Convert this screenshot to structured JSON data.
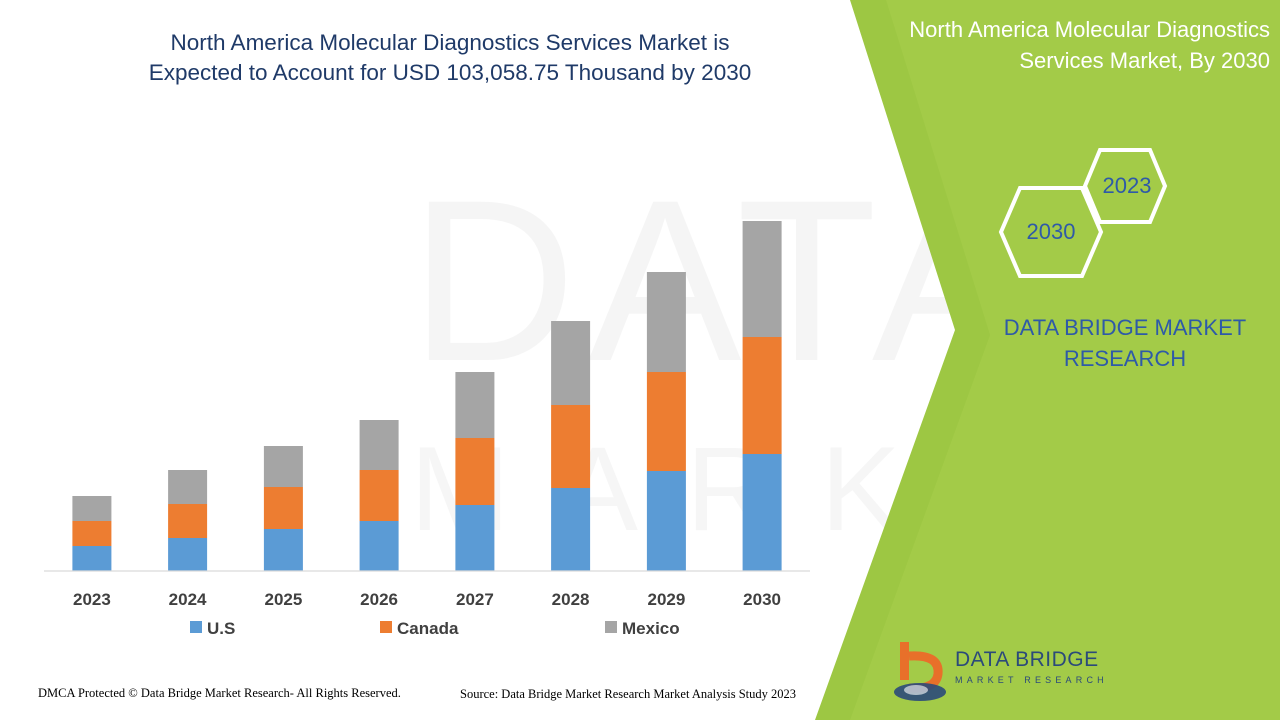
{
  "header": {
    "title_line1": "North America Molecular Diagnostics Services Market is",
    "title_line2": "Expected to Account for USD 103,058.75 Thousand by 2030"
  },
  "side_panel": {
    "title_line1": "North America Molecular Diagnostics",
    "title_line2": "Services Market, By 2030",
    "hex_years": [
      "2023",
      "2030"
    ],
    "brand_line1": "DATA BRIDGE MARKET",
    "brand_line2": "RESEARCH"
  },
  "logo": {
    "name": "DATA BRIDGE",
    "subtitle": "MARKET RESEARCH"
  },
  "footer": {
    "copyright": "DMCA Protected © Data Bridge Market Research- All Rights Reserved.",
    "source": "Source: Data Bridge Market Research Market Analysis Study 2023"
  },
  "colors": {
    "us": "#5b9bd5",
    "canada": "#ed7d31",
    "mexico": "#a5a5a5",
    "panel_green": "#9dc743",
    "title_blue": "#1f3a68",
    "brand_blue": "#2e5aa8"
  },
  "chart_data": {
    "type": "bar",
    "stacked": true,
    "categories": [
      "2023",
      "2024",
      "2025",
      "2026",
      "2027",
      "2028",
      "2029",
      "2030"
    ],
    "series": [
      {
        "name": "U.S",
        "values": [
          25,
          33,
          42,
          50,
          66,
          83,
          100,
          117
        ]
      },
      {
        "name": "Canada",
        "values": [
          25,
          34,
          42,
          51,
          67,
          83,
          99,
          117
        ]
      },
      {
        "name": "Mexico",
        "values": [
          25,
          34,
          41,
          50,
          66,
          84,
          100,
          116
        ]
      }
    ],
    "ylim": [
      0,
      360
    ],
    "grid": false,
    "legend_position": "bottom"
  }
}
